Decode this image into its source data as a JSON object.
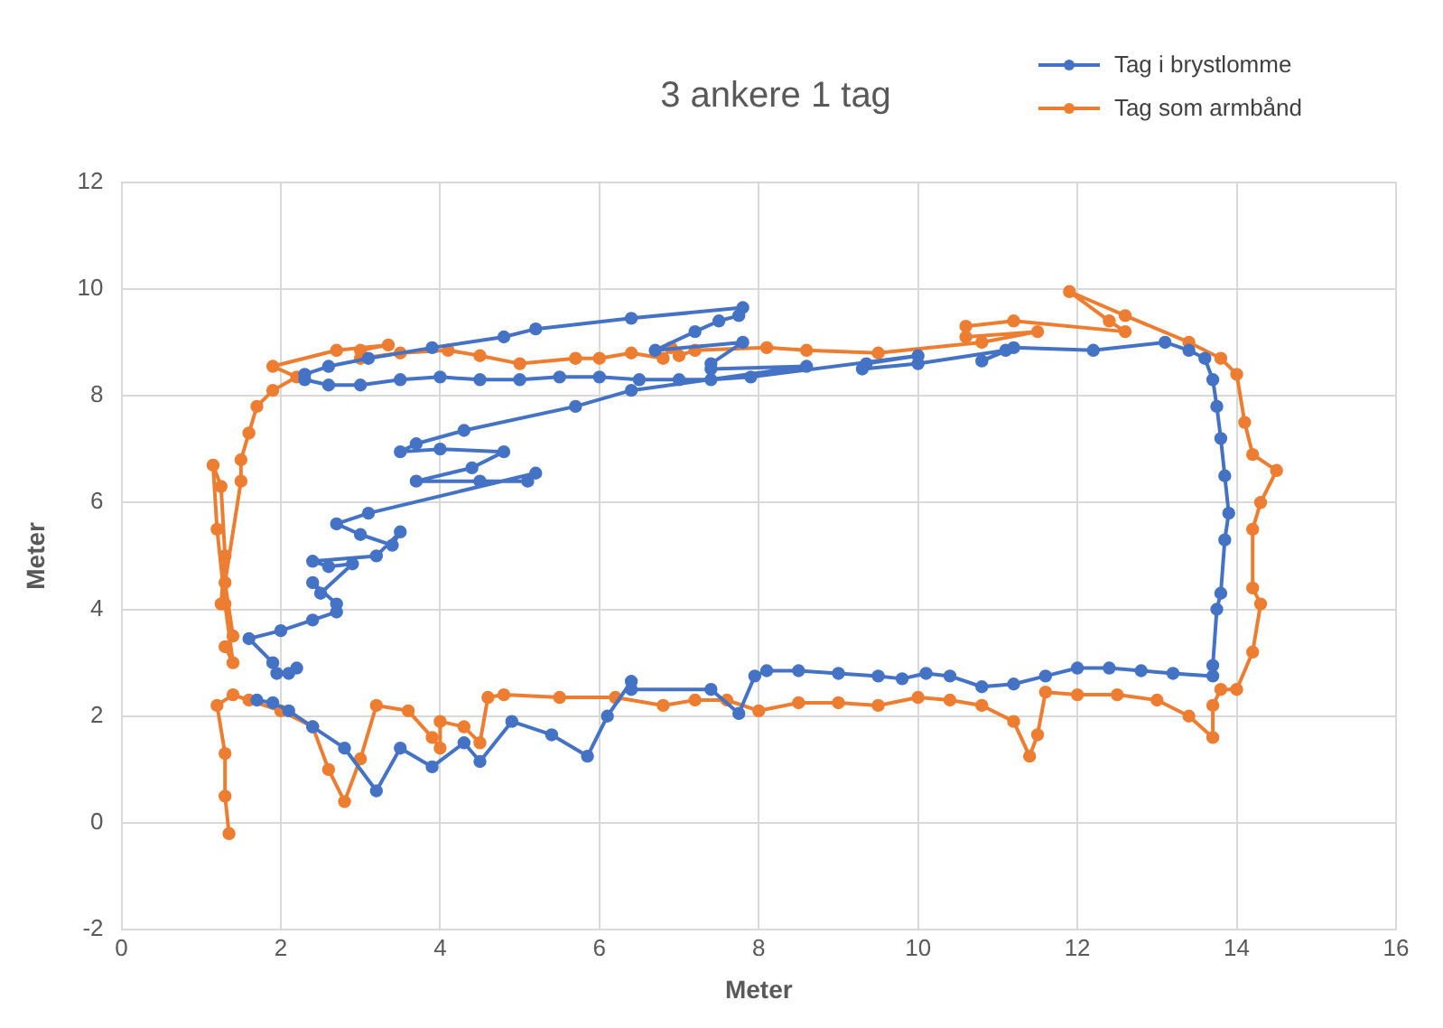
{
  "chart_data": {
    "type": "line",
    "title": "3 ankere 1 tag",
    "xlabel": "Meter",
    "ylabel": "Meter",
    "xlim": [
      0,
      16
    ],
    "xticks": [
      0,
      2,
      4,
      6,
      8,
      10,
      12,
      14,
      16
    ],
    "ylim": [
      -2,
      12
    ],
    "yticks": [
      -2,
      0,
      2,
      4,
      6,
      8,
      10,
      12
    ],
    "grid": true,
    "legend": "top right",
    "marker": "circle",
    "line_style": "solid",
    "series": [
      {
        "name": "Tag i brystlomme",
        "color": "#4472c4",
        "x": [
          1.7,
          1.9,
          2.1,
          2.4,
          2.8,
          3.2,
          3.5,
          3.9,
          4.3,
          4.5,
          4.9,
          5.4,
          5.85,
          6.1,
          6.4,
          6.4,
          7.4,
          7.75,
          7.95,
          8.1,
          8.5,
          9.0,
          9.5,
          9.8,
          10.1,
          10.4,
          10.8,
          11.2,
          11.6,
          12.0,
          12.4,
          12.8,
          13.2,
          13.7,
          13.7,
          13.75,
          13.8,
          13.85,
          13.9,
          13.85,
          13.8,
          13.75,
          13.7,
          13.6,
          13.4,
          13.1,
          12.2,
          11.2,
          10.8,
          11.1,
          10.0,
          9.3,
          9.35,
          10.0,
          7.9,
          7.4,
          7.0,
          6.5,
          6.0,
          5.5,
          5.0,
          4.5,
          4.0,
          3.5,
          3.0,
          2.6,
          2.3,
          2.3,
          2.6,
          3.1,
          3.9,
          4.8,
          5.2,
          6.4,
          7.8,
          7.75,
          7.5,
          7.2,
          6.7,
          7.8,
          7.4,
          7.4,
          8.6,
          6.4,
          5.7,
          4.3,
          3.7,
          3.5,
          4.0,
          4.8,
          4.4,
          3.7,
          4.5,
          5.1,
          5.2,
          3.1,
          2.7,
          3.0,
          3.4,
          3.5,
          3.2,
          2.4,
          2.6,
          2.9,
          2.5,
          2.4,
          2.7,
          2.7,
          2.4,
          2.0,
          1.6,
          1.9,
          1.95,
          2.1,
          2.2
        ],
        "values": [
          2.3,
          2.25,
          2.1,
          1.8,
          1.4,
          0.6,
          1.4,
          1.05,
          1.5,
          1.15,
          1.9,
          1.65,
          1.25,
          2.0,
          2.65,
          2.5,
          2.5,
          2.05,
          2.75,
          2.85,
          2.85,
          2.8,
          2.75,
          2.7,
          2.8,
          2.75,
          2.55,
          2.6,
          2.75,
          2.9,
          2.9,
          2.85,
          2.8,
          2.75,
          2.95,
          4.0,
          4.3,
          5.3,
          5.8,
          6.5,
          7.2,
          7.8,
          8.3,
          8.7,
          8.85,
          9.0,
          8.85,
          8.9,
          8.65,
          8.85,
          8.6,
          8.5,
          8.6,
          8.75,
          8.35,
          8.3,
          8.3,
          8.3,
          8.35,
          8.35,
          8.3,
          8.3,
          8.35,
          8.3,
          8.2,
          8.2,
          8.3,
          8.4,
          8.55,
          8.7,
          8.9,
          9.1,
          9.25,
          9.45,
          9.65,
          9.5,
          9.4,
          9.2,
          8.85,
          9.0,
          8.6,
          8.5,
          8.55,
          8.1,
          7.8,
          7.35,
          7.1,
          6.95,
          7.0,
          6.95,
          6.65,
          6.4,
          6.4,
          6.4,
          6.55,
          5.8,
          5.6,
          5.4,
          5.2,
          5.45,
          5.0,
          4.9,
          4.8,
          4.85,
          4.3,
          4.5,
          4.1,
          3.95,
          3.8,
          3.6,
          3.45,
          3.0,
          2.8,
          2.8,
          2.9
        ]
      },
      {
        "name": "Tag som armbånd",
        "color": "#ed7d31",
        "x": [
          1.35,
          1.3,
          1.3,
          1.2,
          1.4,
          1.6,
          2.0,
          2.4,
          2.6,
          2.8,
          3.0,
          3.2,
          3.6,
          3.9,
          4.0,
          4.0,
          4.3,
          4.5,
          4.6,
          4.8,
          5.5,
          6.2,
          6.8,
          7.2,
          7.6,
          8.0,
          8.5,
          9.0,
          9.5,
          10.0,
          10.4,
          10.8,
          11.2,
          11.4,
          11.5,
          11.6,
          12.0,
          12.5,
          13.0,
          13.4,
          13.7,
          13.7,
          13.8,
          14.0,
          14.2,
          14.3,
          14.2,
          14.2,
          14.3,
          14.5,
          14.2,
          14.1,
          14.0,
          13.8,
          13.4,
          12.6,
          11.9,
          12.4,
          12.6,
          11.2,
          10.6,
          10.6,
          11.5,
          10.8,
          9.5,
          8.6,
          8.1,
          7.2,
          7.0,
          6.9,
          6.8,
          6.4,
          6.0,
          5.7,
          5.0,
          4.5,
          4.1,
          3.5,
          3.0,
          3.0,
          3.35,
          2.7,
          1.9,
          2.2,
          1.9,
          1.7,
          1.6,
          1.5,
          1.5,
          1.3,
          1.4,
          1.3,
          1.4,
          1.3,
          1.2,
          1.15,
          1.25,
          1.3,
          1.25
        ],
        "values": [
          -0.2,
          0.5,
          1.3,
          2.2,
          2.4,
          2.3,
          2.1,
          1.8,
          1.0,
          0.4,
          1.2,
          2.2,
          2.1,
          1.6,
          1.4,
          1.9,
          1.8,
          1.5,
          2.35,
          2.4,
          2.35,
          2.35,
          2.2,
          2.3,
          2.3,
          2.1,
          2.25,
          2.25,
          2.2,
          2.35,
          2.3,
          2.2,
          1.9,
          1.25,
          1.65,
          2.45,
          2.4,
          2.4,
          2.3,
          2.0,
          1.6,
          2.2,
          2.5,
          2.5,
          3.2,
          4.1,
          4.4,
          5.5,
          6.0,
          6.6,
          6.9,
          7.5,
          8.4,
          8.7,
          9.0,
          9.5,
          9.95,
          9.4,
          9.2,
          9.4,
          9.3,
          9.1,
          9.2,
          9.0,
          8.8,
          8.85,
          8.9,
          8.85,
          8.75,
          8.9,
          8.7,
          8.8,
          8.7,
          8.7,
          8.6,
          8.75,
          8.85,
          8.8,
          8.7,
          8.85,
          8.95,
          8.85,
          8.55,
          8.35,
          8.1,
          7.8,
          7.3,
          6.8,
          6.4,
          4.5,
          3.5,
          3.3,
          3.0,
          4.1,
          5.5,
          6.7,
          6.3,
          5.0,
          4.1
        ]
      }
    ]
  }
}
